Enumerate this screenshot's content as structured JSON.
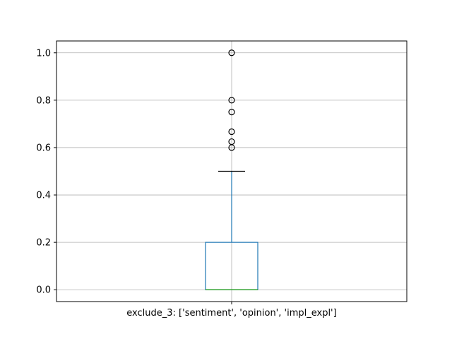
{
  "chart_data": {
    "type": "box",
    "title": "",
    "xlabel": "",
    "ylabel": "",
    "categories": [
      "exclude_3: ['sentiment', 'opinion', 'impl_expl']"
    ],
    "boxes": [
      {
        "category": "exclude_3: ['sentiment', 'opinion', 'impl_expl']",
        "whisker_low": 0.0,
        "q1": 0.0,
        "median": 0.0,
        "q3": 0.2,
        "whisker_high": 0.5,
        "outliers": [
          0.6,
          0.625,
          0.667,
          0.75,
          0.8,
          1.0
        ]
      }
    ],
    "ylim": [
      -0.05,
      1.05
    ],
    "y_ticks": [
      0.0,
      0.2,
      0.4,
      0.6,
      0.8,
      1.0
    ],
    "y_tick_labels": [
      "0.0",
      "0.2",
      "0.4",
      "0.6",
      "0.8",
      "1.0"
    ],
    "grid": true,
    "colors": {
      "box": "#1f77b4",
      "median": "#2ca02c",
      "whisker_cap": "#000000",
      "outlier": "#000000",
      "grid": "#b0b0b0"
    }
  }
}
